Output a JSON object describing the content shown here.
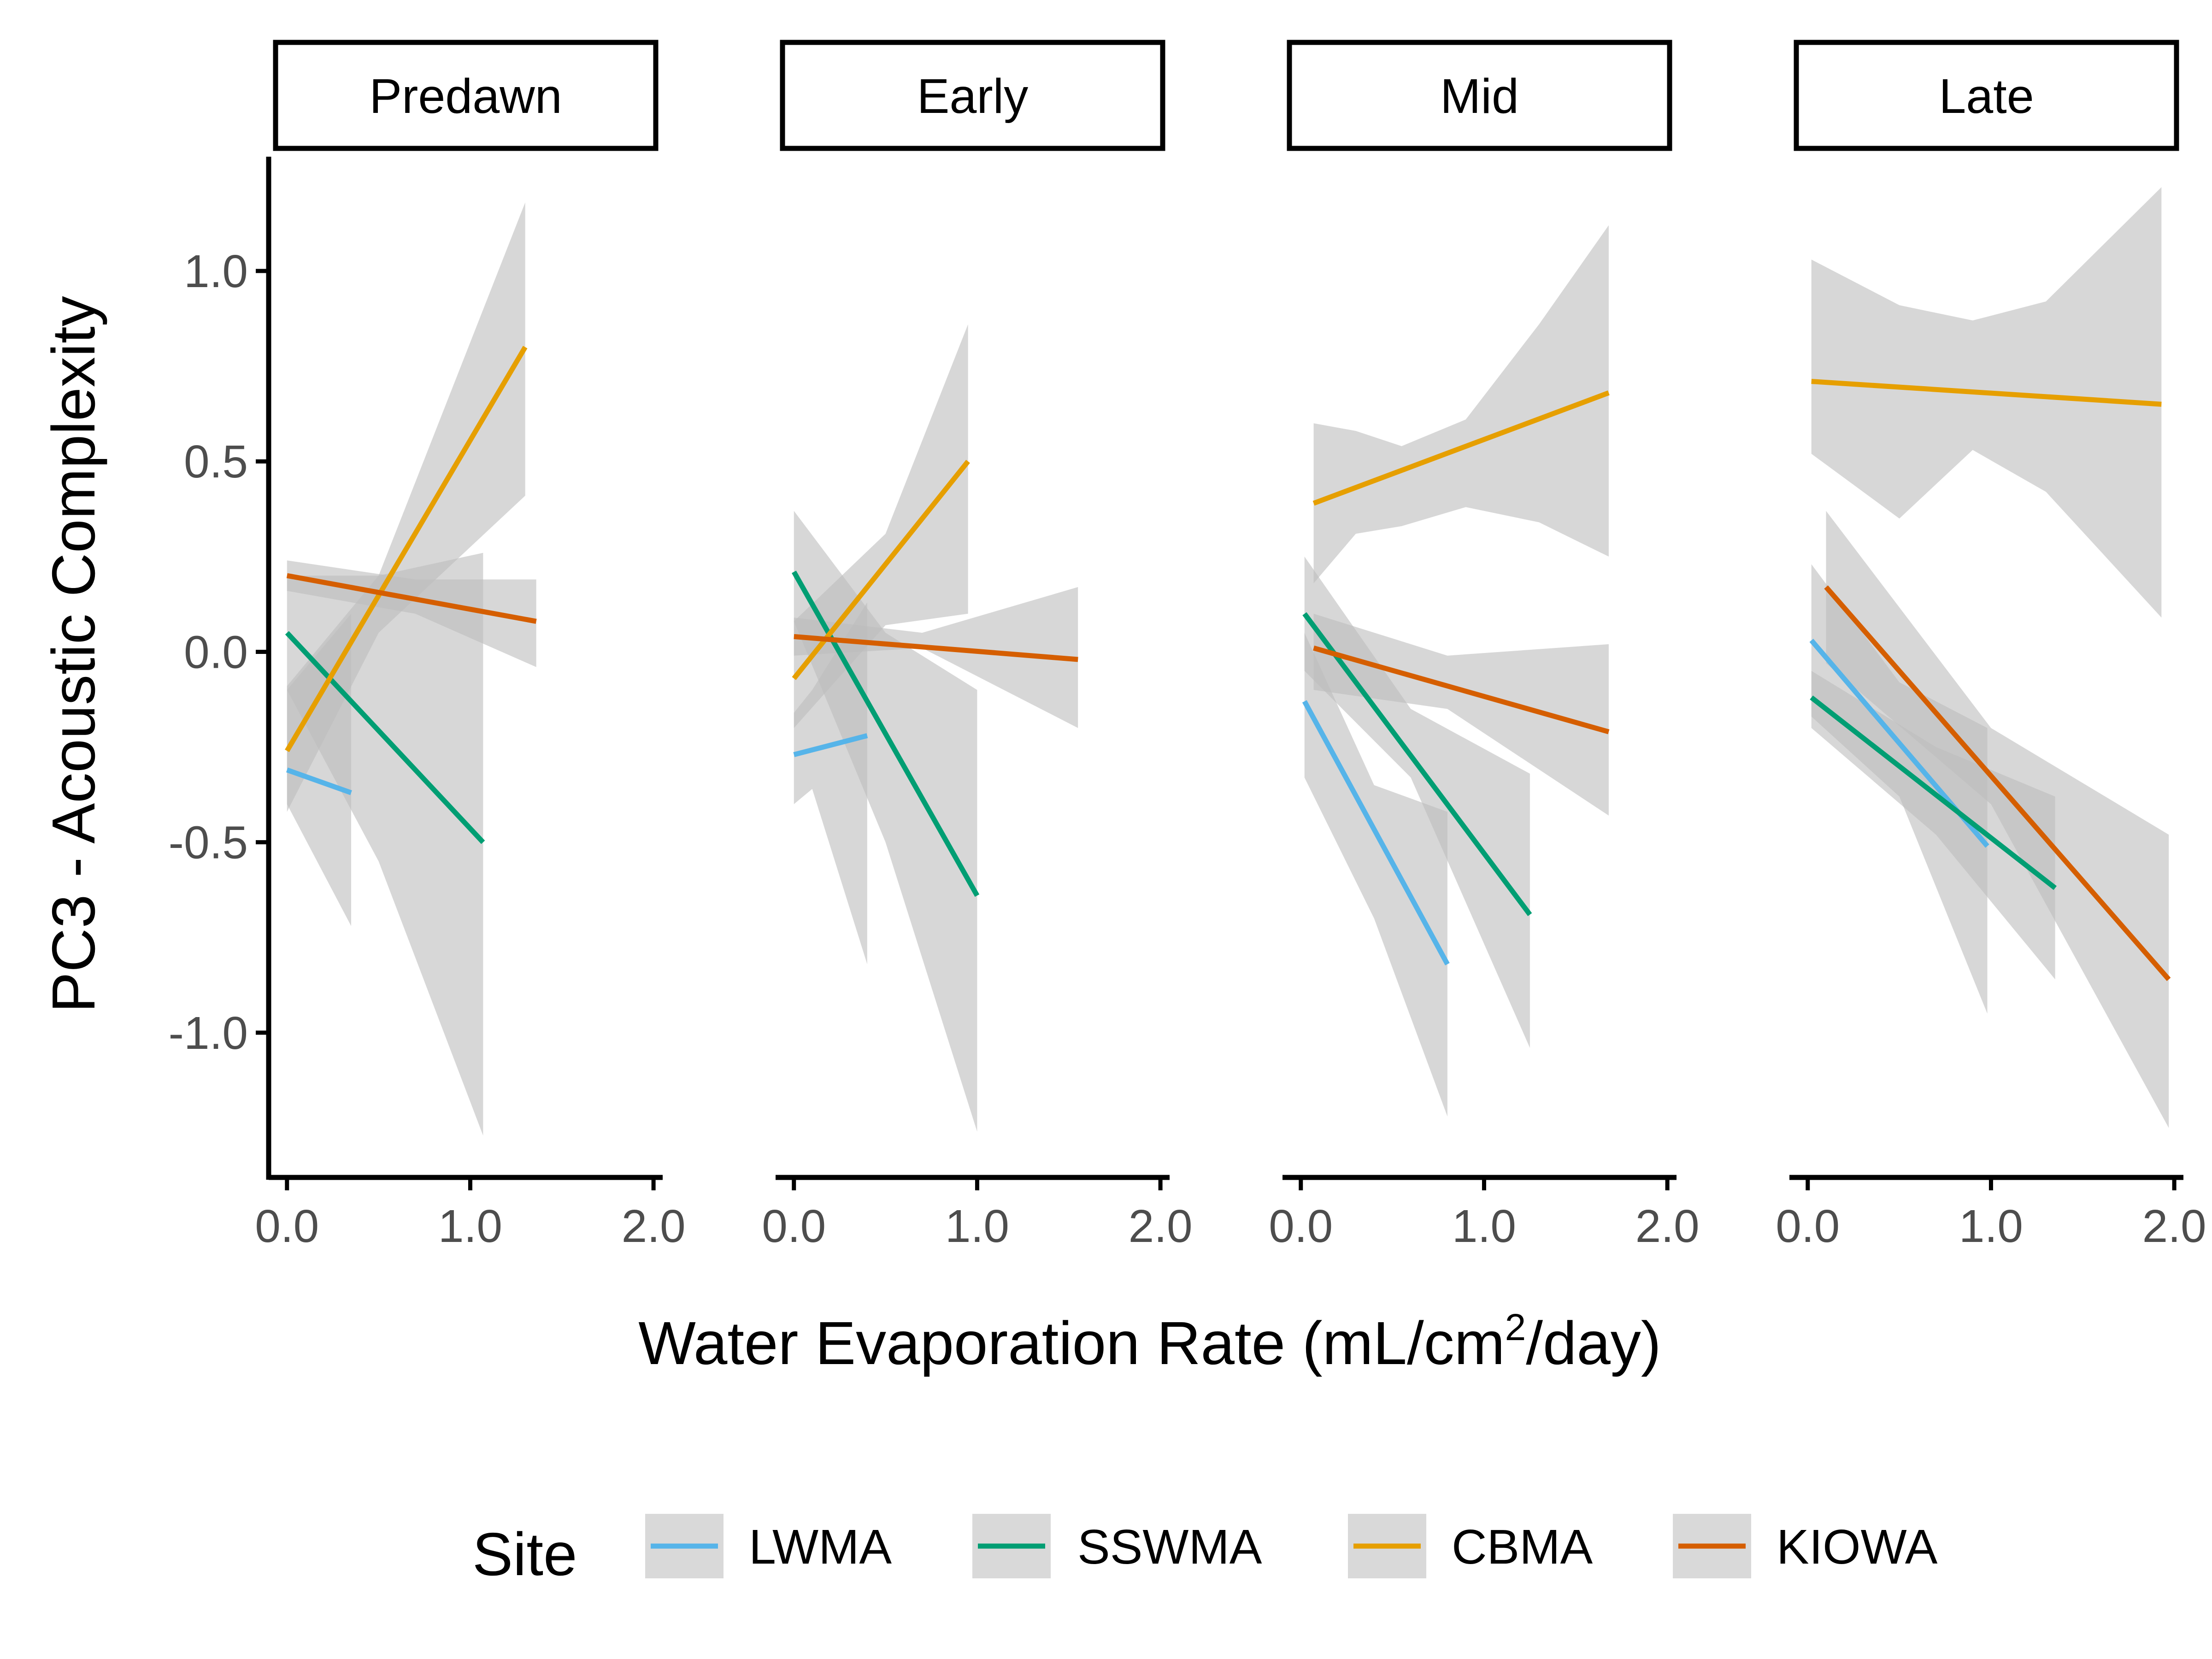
{
  "chart_data": {
    "type": "line",
    "facets": [
      {
        "label": "Predawn",
        "series": [
          {
            "site": "LWMA",
            "x": [
              0.0,
              0.35
            ],
            "y": [
              -0.31,
              -0.37
            ],
            "ci_x": [
              0.0,
              0.35
            ],
            "ci_lower": [
              -0.4,
              -0.72
            ],
            "ci_upper": [
              -0.1,
              0.1
            ]
          },
          {
            "site": "SSWMA",
            "x": [
              0.0,
              1.07
            ],
            "y": [
              0.05,
              -0.5
            ],
            "ci_x": [
              0.0,
              0.5,
              1.07
            ],
            "ci_lower": [
              -0.1,
              -0.55,
              -1.27
            ],
            "ci_upper": [
              0.2,
              0.2,
              0.26
            ]
          },
          {
            "site": "CBMA",
            "x": [
              0.0,
              1.3
            ],
            "y": [
              -0.26,
              0.8
            ],
            "ci_x": [
              0.0,
              0.5,
              1.3
            ],
            "ci_lower": [
              -0.42,
              0.05,
              0.41
            ],
            "ci_upper": [
              -0.09,
              0.2,
              1.18
            ]
          },
          {
            "site": "KIOWA",
            "x": [
              0.0,
              1.36
            ],
            "y": [
              0.2,
              0.08
            ],
            "ci_x": [
              0.0,
              0.7,
              1.36
            ],
            "ci_lower": [
              0.16,
              0.1,
              -0.04
            ],
            "ci_upper": [
              0.24,
              0.19,
              0.19
            ]
          }
        ]
      },
      {
        "label": "Early",
        "series": [
          {
            "site": "LWMA",
            "x": [
              0.0,
              0.4
            ],
            "y": [
              -0.27,
              -0.22
            ],
            "ci_x": [
              0.0,
              0.1,
              0.4
            ],
            "ci_lower": [
              -0.4,
              -0.36,
              -0.82
            ],
            "ci_upper": [
              -0.16,
              -0.1,
              0.13
            ]
          },
          {
            "site": "SSWMA",
            "x": [
              0.0,
              1.0
            ],
            "y": [
              0.21,
              -0.64
            ],
            "ci_x": [
              0.0,
              0.5,
              1.0
            ],
            "ci_lower": [
              0.08,
              -0.5,
              -1.26
            ],
            "ci_upper": [
              0.37,
              0.05,
              -0.1
            ]
          },
          {
            "site": "CBMA",
            "x": [
              0.0,
              0.95
            ],
            "y": [
              -0.07,
              0.5
            ],
            "ci_x": [
              0.0,
              0.5,
              0.95
            ],
            "ci_lower": [
              -0.2,
              0.07,
              0.1
            ],
            "ci_upper": [
              0.08,
              0.31,
              0.86
            ]
          },
          {
            "site": "KIOWA",
            "x": [
              0.0,
              1.55
            ],
            "y": [
              0.04,
              -0.02
            ],
            "ci_x": [
              0.0,
              0.7,
              1.55
            ],
            "ci_lower": [
              -0.01,
              0.01,
              -0.2
            ],
            "ci_upper": [
              0.09,
              0.05,
              0.17
            ]
          }
        ]
      },
      {
        "label": "Mid",
        "series": [
          {
            "site": "LWMA",
            "x": [
              0.02,
              0.8
            ],
            "y": [
              -0.13,
              -0.82
            ],
            "ci_x": [
              0.02,
              0.4,
              0.8
            ],
            "ci_lower": [
              -0.33,
              -0.7,
              -1.22
            ],
            "ci_upper": [
              0.05,
              -0.35,
              -0.42
            ]
          },
          {
            "site": "SSWMA",
            "x": [
              0.02,
              1.25
            ],
            "y": [
              0.1,
              -0.69
            ],
            "ci_x": [
              0.02,
              0.6,
              1.25
            ],
            "ci_lower": [
              -0.05,
              -0.33,
              -1.04
            ],
            "ci_upper": [
              0.25,
              -0.15,
              -0.32
            ]
          },
          {
            "site": "CBMA",
            "x": [
              0.07,
              1.68
            ],
            "y": [
              0.39,
              0.68
            ],
            "ci_x": [
              0.07,
              0.3,
              0.55,
              0.9,
              1.3,
              1.68
            ],
            "ci_lower": [
              0.18,
              0.31,
              0.33,
              0.38,
              0.34,
              0.25
            ],
            "ci_upper": [
              0.6,
              0.58,
              0.54,
              0.61,
              0.86,
              1.12
            ]
          },
          {
            "site": "KIOWA",
            "x": [
              0.07,
              1.68
            ],
            "y": [
              0.01,
              -0.21
            ],
            "ci_x": [
              0.07,
              0.8,
              1.68
            ],
            "ci_lower": [
              -0.1,
              -0.15,
              -0.43
            ],
            "ci_upper": [
              0.1,
              -0.01,
              0.02
            ]
          }
        ]
      },
      {
        "label": "Late",
        "series": [
          {
            "site": "LWMA",
            "x": [
              0.02,
              0.98
            ],
            "y": [
              0.03,
              -0.51
            ],
            "ci_x": [
              0.02,
              0.5,
              0.98
            ],
            "ci_lower": [
              -0.17,
              -0.38,
              -0.95
            ],
            "ci_upper": [
              0.23,
              -0.08,
              -0.2
            ]
          },
          {
            "site": "SSWMA",
            "x": [
              0.02,
              1.35
            ],
            "y": [
              -0.12,
              -0.62
            ],
            "ci_x": [
              0.02,
              0.7,
              1.35
            ],
            "ci_lower": [
              -0.2,
              -0.48,
              -0.86
            ],
            "ci_upper": [
              -0.05,
              -0.25,
              -0.38
            ]
          },
          {
            "site": "CBMA",
            "x": [
              0.02,
              1.93
            ],
            "y": [
              0.71,
              0.65
            ],
            "ci_x": [
              0.02,
              0.5,
              0.9,
              1.3,
              1.93
            ],
            "ci_lower": [
              0.52,
              0.35,
              0.53,
              0.42,
              0.09
            ],
            "ci_upper": [
              1.03,
              0.91,
              0.87,
              0.92,
              1.22
            ]
          },
          {
            "site": "KIOWA",
            "x": [
              0.1,
              1.97
            ],
            "y": [
              0.17,
              -0.86
            ],
            "ci_x": [
              0.1,
              1.0,
              1.97
            ],
            "ci_lower": [
              -0.03,
              -0.4,
              -1.25
            ],
            "ci_upper": [
              0.37,
              -0.2,
              -0.48
            ]
          }
        ]
      }
    ],
    "xlim": [
      -0.1,
      2.05
    ],
    "ylim": [
      -1.38,
      1.3
    ],
    "x_ticks": [
      0.0,
      1.0,
      2.0
    ],
    "x_tick_labels": [
      "0.0",
      "1.0",
      "2.0"
    ],
    "y_ticks": [
      1.0,
      0.5,
      0.0,
      -0.5,
      -1.0
    ],
    "y_tick_labels": [
      "1.0",
      "0.5",
      "0.0",
      "-0.5",
      "-1.0"
    ],
    "xlabel_main": "Water Evaporation Rate (mL/cm",
    "xlabel_sup": "2",
    "xlabel_tail": "/day)",
    "ylabel": "PC3 - Acoustic Complexity",
    "legend": {
      "title": "Site",
      "position": "bottom",
      "items": [
        {
          "label": "LWMA",
          "color": "#56B4E9"
        },
        {
          "label": "SSWMA",
          "color": "#009E73"
        },
        {
          "label": "CBMA",
          "color": "#E69F00"
        },
        {
          "label": "KIOWA",
          "color": "#D55E00"
        }
      ]
    },
    "ribbon_color": "#bdbdbd",
    "grid": false
  }
}
